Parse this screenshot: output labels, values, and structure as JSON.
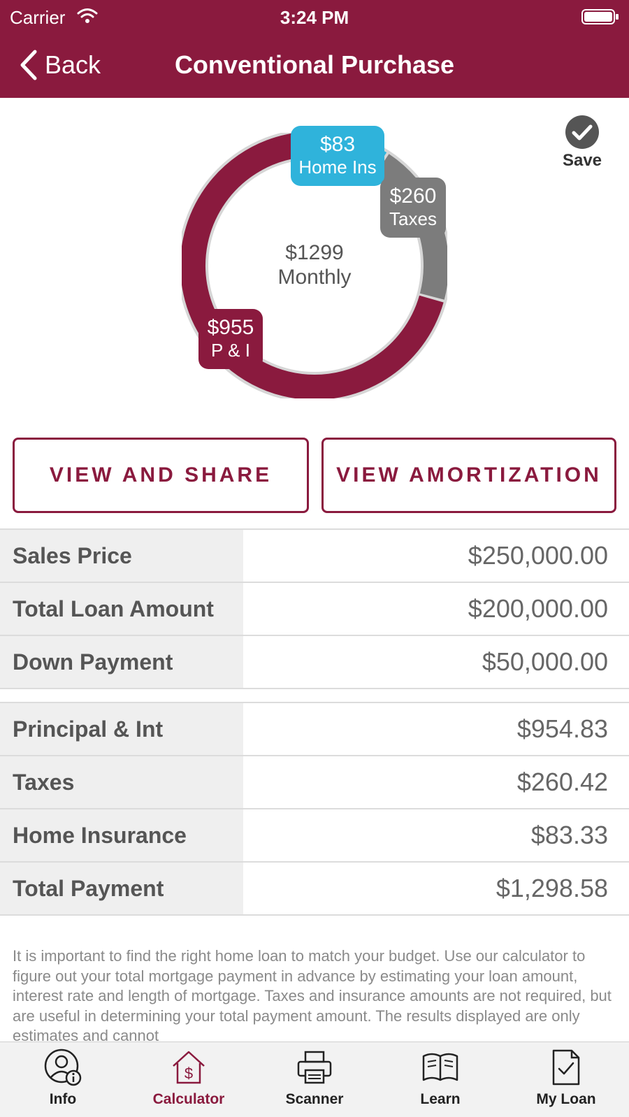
{
  "status_bar": {
    "carrier": "Carrier",
    "time": "3:24 PM"
  },
  "nav": {
    "back_label": "Back",
    "title": "Conventional Purchase"
  },
  "save": {
    "label": "Save"
  },
  "chart_data": {
    "type": "pie",
    "center_amount": "$1299",
    "center_label": "Monthly",
    "slices": [
      {
        "label": "P & I",
        "display": "$955",
        "value": 954.83,
        "color": "#8a1a3e"
      },
      {
        "label": "Taxes",
        "display": "$260",
        "value": 260.42,
        "color": "#7c7c7c"
      },
      {
        "label": "Home Ins",
        "display": "$83",
        "value": 83.33,
        "color": "#2fb3db"
      }
    ]
  },
  "buttons": {
    "view_share": "VIEW AND SHARE",
    "view_amortization": "VIEW AMORTIZATION"
  },
  "loan_table": [
    {
      "label": "Sales Price",
      "value": "$250,000.00"
    },
    {
      "label": "Total Loan Amount",
      "value": "$200,000.00"
    },
    {
      "label": "Down Payment",
      "value": "$50,000.00"
    }
  ],
  "payment_table": [
    {
      "label": "Principal & Int",
      "value": "$954.83"
    },
    {
      "label": "Taxes",
      "value": "$260.42"
    },
    {
      "label": "Home Insurance",
      "value": "$83.33"
    },
    {
      "label": "Total Payment",
      "value": "$1,298.58"
    }
  ],
  "disclaimer": "It is important to find the right home loan to match your budget. Use our calculator to figure out your total mortgage payment in advance by estimating your loan amount, interest rate and length of mortgage. Taxes and insurance amounts are not required, but are useful in determining your total payment amount.  The results displayed are only estimates and cannot",
  "tabbar": {
    "tabs": [
      {
        "label": "Info",
        "icon": "user-info-icon"
      },
      {
        "label": "Calculator",
        "icon": "house-dollar-icon",
        "active": true
      },
      {
        "label": "Scanner",
        "icon": "printer-icon"
      },
      {
        "label": "Learn",
        "icon": "book-icon"
      },
      {
        "label": "My Loan",
        "icon": "document-check-icon"
      }
    ]
  },
  "colors": {
    "brand": "#8a1a3e",
    "taxes": "#7c7c7c",
    "insurance": "#2fb3db"
  }
}
